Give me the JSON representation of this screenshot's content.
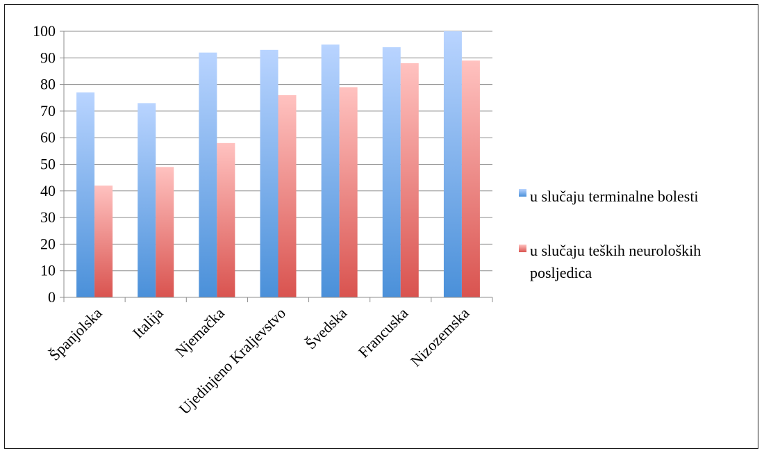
{
  "chart_data": {
    "type": "bar",
    "categories": [
      "Španjolska",
      "Italija",
      "Njemačka",
      "Ujedinjeno Kraljevstvo",
      "Švedska",
      "Francuska",
      "Nizozemska"
    ],
    "series": [
      {
        "name": "u slučaju terminalne bolesti",
        "values": [
          77,
          73,
          92,
          93,
          95,
          94,
          100
        ],
        "color_top": "#b9d4ff",
        "color_bottom": "#4a90d9"
      },
      {
        "name": "u slučaju teških neuroloških posljedica",
        "values": [
          42,
          49,
          58,
          76,
          79,
          88,
          89
        ],
        "color_top": "#ffc2c0",
        "color_bottom": "#d9534f"
      }
    ],
    "title": "",
    "xlabel": "",
    "ylabel": "",
    "ylim": [
      0,
      100
    ],
    "yticks": [
      "0",
      "10",
      "20",
      "30",
      "40",
      "50",
      "60",
      "70",
      "80",
      "90",
      "100"
    ],
    "grid": true,
    "legend_position": "right",
    "legend": {
      "series1_lines": [
        "u slučaju terminalne bolesti"
      ],
      "series2_lines": [
        "u slučaju teških neuroloških",
        "posljedica"
      ]
    }
  }
}
